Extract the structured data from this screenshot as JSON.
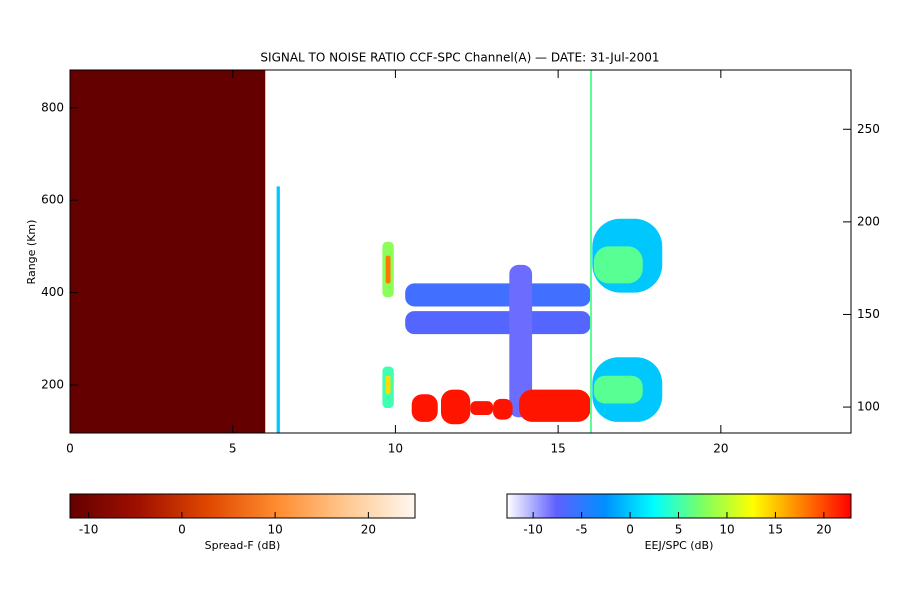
{
  "chart_data": {
    "type": "heatmap",
    "title": "SIGNAL TO NOISE RATIO CCF-SPC Channel(A) — DATE: 31-Jul-2001",
    "ylabel": "Range (Km)",
    "xlim": [
      0,
      24
    ],
    "xticks": [
      0,
      5,
      10,
      15,
      20
    ],
    "ylim": [
      96,
      882
    ],
    "yticks": [
      200,
      400,
      600,
      800
    ],
    "y2lim": [
      86,
      282
    ],
    "y2ticks": [
      100,
      150,
      200,
      250
    ],
    "colorbars": [
      {
        "label": "Spread-F (dB)",
        "lim": [
          -12,
          25
        ],
        "ticks": [
          -10,
          0,
          10,
          20
        ],
        "colors": [
          "#640000",
          "#a01000",
          "#e04800",
          "#ff8c30",
          "#ffc890",
          "#fff8f0"
        ]
      },
      {
        "label": "EEJ/SPC (dB)",
        "lim": [
          -12.7,
          22.8
        ],
        "ticks": [
          -10,
          -5,
          0,
          5,
          10,
          15,
          20
        ],
        "colors": [
          "#ffffff",
          "#6060ff",
          "#0090ff",
          "#00ffff",
          "#80ff60",
          "#ffff00",
          "#ff8000",
          "#ff0000"
        ]
      }
    ],
    "patches": [
      {
        "x0": 0,
        "x1": 6,
        "r0": 96,
        "r1": 882,
        "value": -12,
        "scale": 0
      },
      {
        "x0": 6.35,
        "x1": 6.45,
        "r0": 96,
        "r1": 630,
        "value": 0,
        "scale": 1
      },
      {
        "x0": 9.6,
        "x1": 9.95,
        "r0": 390,
        "r1": 510,
        "value": 8,
        "scale": 1
      },
      {
        "x0": 9.7,
        "x1": 9.85,
        "r0": 420,
        "r1": 480,
        "value": 18,
        "scale": 1
      },
      {
        "x0": 9.6,
        "x1": 9.95,
        "r0": 150,
        "r1": 240,
        "value": 5,
        "scale": 1
      },
      {
        "x0": 9.7,
        "x1": 9.85,
        "r0": 180,
        "r1": 220,
        "value": 14,
        "scale": 1
      },
      {
        "x0": 10.3,
        "x1": 16,
        "r0": 370,
        "r1": 420,
        "value": -6,
        "scale": 1
      },
      {
        "x0": 10.3,
        "x1": 16,
        "r0": 310,
        "r1": 360,
        "value": -7,
        "scale": 1
      },
      {
        "x0": 13.5,
        "x1": 14.2,
        "r0": 130,
        "r1": 460,
        "value": -8,
        "scale": 1
      },
      {
        "x0": 10.5,
        "x1": 11.3,
        "r0": 120,
        "r1": 180,
        "value": 22,
        "scale": 1
      },
      {
        "x0": 11.4,
        "x1": 12.3,
        "r0": 115,
        "r1": 190,
        "value": 22,
        "scale": 1
      },
      {
        "x0": 12.3,
        "x1": 13,
        "r0": 135,
        "r1": 165,
        "value": 22,
        "scale": 1
      },
      {
        "x0": 13,
        "x1": 13.6,
        "r0": 125,
        "r1": 170,
        "value": 22,
        "scale": 1
      },
      {
        "x0": 13.8,
        "x1": 16,
        "r0": 120,
        "r1": 190,
        "value": 22,
        "scale": 1
      },
      {
        "x0": 15.98,
        "x1": 16.04,
        "r0": 96,
        "r1": 882,
        "value": 6,
        "scale": 1
      },
      {
        "x0": 16.05,
        "x1": 18.2,
        "r0": 400,
        "r1": 560,
        "value": 0,
        "scale": 1
      },
      {
        "x0": 16.1,
        "x1": 17.6,
        "r0": 420,
        "r1": 500,
        "value": 6,
        "scale": 1
      },
      {
        "x0": 16.05,
        "x1": 18.2,
        "r0": 120,
        "r1": 260,
        "value": 0,
        "scale": 1
      },
      {
        "x0": 16.1,
        "x1": 17.6,
        "r0": 160,
        "r1": 220,
        "value": 6,
        "scale": 1
      }
    ]
  }
}
